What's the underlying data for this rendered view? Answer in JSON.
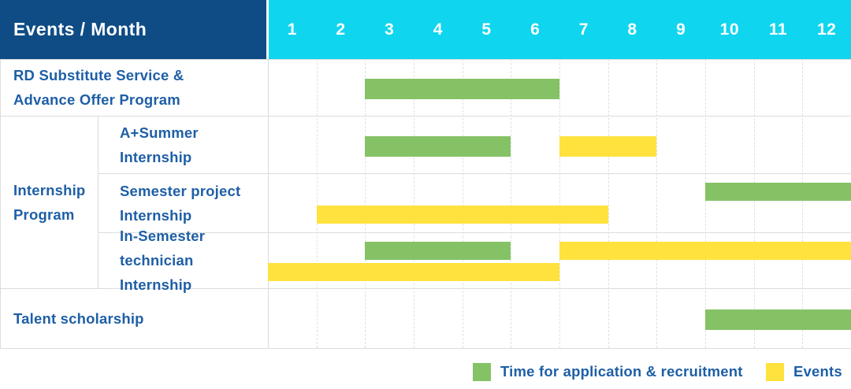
{
  "header": {
    "title": "Events / Month",
    "months": [
      "1",
      "2",
      "3",
      "4",
      "5",
      "6",
      "7",
      "8",
      "9",
      "10",
      "11",
      "12"
    ]
  },
  "colors": {
    "header_bg": "#0f4c85",
    "months_bg": "#10d5ef",
    "application_green": "#85c266",
    "events_yellow": "#ffe23e",
    "label_text": "#1e5fa6",
    "header_text": "#ffffff",
    "grid_line": "#dcdcdc"
  },
  "table": {
    "group_label_lines": [
      "Internship",
      "Program"
    ],
    "rows": [
      {
        "group": null,
        "label": "RD Substitute Service & Advance Offer Program",
        "label_lines": [
          "RD Substitute Service &",
          "Advance Offer Program"
        ],
        "bars": [
          {
            "series": "application",
            "start_month": 3,
            "end_month": 6,
            "lane": "single"
          }
        ]
      },
      {
        "group": "Internship Program",
        "label": "A+Summer Internship",
        "label_lines": [
          "A+Summer",
          "Internship"
        ],
        "bars": [
          {
            "series": "application",
            "start_month": 3,
            "end_month": 5,
            "lane": "single"
          },
          {
            "series": "events",
            "start_month": 7,
            "end_month": 8,
            "lane": "single"
          }
        ]
      },
      {
        "group": "Internship Program",
        "label": "Semester project Internship",
        "label_lines": [
          "Semester project",
          "Internship"
        ],
        "bars": [
          {
            "series": "application",
            "start_month": 10,
            "end_month": 12,
            "lane": "top"
          },
          {
            "series": "events",
            "start_month": 2,
            "end_month": 7,
            "lane": "bottom"
          }
        ]
      },
      {
        "group": "Internship Program",
        "label": "In-Semester technician Internship",
        "label_lines": [
          "In-Semester",
          "technician Internship"
        ],
        "bars": [
          {
            "series": "application",
            "start_month": 3,
            "end_month": 5,
            "lane": "top"
          },
          {
            "series": "events",
            "start_month": 7,
            "end_month": 12,
            "lane": "top"
          },
          {
            "series": "events",
            "start_month": 1,
            "end_month": 6,
            "lane": "bottom"
          }
        ]
      },
      {
        "group": null,
        "label": "Talent scholarship",
        "label_lines": [
          "Talent scholarship"
        ],
        "bars": [
          {
            "series": "application",
            "start_month": 10,
            "end_month": 12,
            "lane": "single"
          }
        ]
      }
    ]
  },
  "legend": {
    "items": [
      {
        "key": "application",
        "label": "Time for application & recruitment",
        "color": "#85c266"
      },
      {
        "key": "events",
        "label": "Events",
        "color": "#ffe23e"
      }
    ]
  },
  "chart_data": {
    "type": "bar",
    "subtype": "gantt-timeline",
    "title": "Events / Month",
    "x_axis": {
      "label": "Month",
      "categories": [
        1,
        2,
        3,
        4,
        5,
        6,
        7,
        8,
        9,
        10,
        11,
        12
      ]
    },
    "legend_position": "bottom-right",
    "grid": "dashed-vertical-month-lines",
    "series_legend": [
      {
        "name": "Time for application & recruitment",
        "color": "#85c266"
      },
      {
        "name": "Events",
        "color": "#ffe23e"
      }
    ],
    "rows": [
      {
        "event": "RD Substitute Service & Advance Offer Program",
        "group": null,
        "segments": [
          {
            "series": "Time for application & recruitment",
            "start_month": 3,
            "end_month": 6
          }
        ]
      },
      {
        "event": "A+Summer Internship",
        "group": "Internship Program",
        "segments": [
          {
            "series": "Time for application & recruitment",
            "start_month": 3,
            "end_month": 5
          },
          {
            "series": "Events",
            "start_month": 7,
            "end_month": 8
          }
        ]
      },
      {
        "event": "Semester project Internship",
        "group": "Internship Program",
        "segments": [
          {
            "series": "Time for application & recruitment",
            "start_month": 10,
            "end_month": 12
          },
          {
            "series": "Events",
            "start_month": 2,
            "end_month": 7
          }
        ]
      },
      {
        "event": "In-Semester technician Internship",
        "group": "Internship Program",
        "segments": [
          {
            "series": "Time for application & recruitment",
            "start_month": 3,
            "end_month": 5
          },
          {
            "series": "Events",
            "start_month": 7,
            "end_month": 12
          },
          {
            "series": "Events",
            "start_month": 1,
            "end_month": 6
          }
        ]
      },
      {
        "event": "Talent scholarship",
        "group": null,
        "segments": [
          {
            "series": "Time for application & recruitment",
            "start_month": 10,
            "end_month": 12
          }
        ]
      }
    ]
  }
}
